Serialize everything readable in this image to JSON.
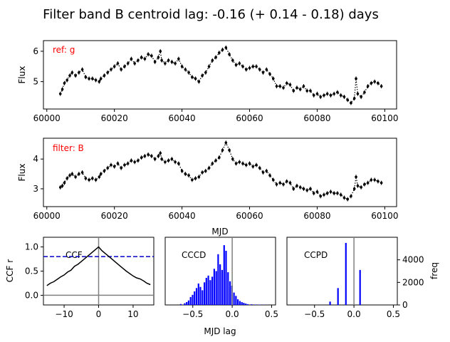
{
  "figure": {
    "title": "Filter band B centroid lag: -0.16 (+ 0.14 - 0.18) days"
  },
  "chart_data": [
    {
      "type": "scatter",
      "panel": "reference light curve",
      "annotation": "ref: g",
      "annotation_color": "#ff0000",
      "xlabel": "",
      "ylabel": "Flux",
      "xlim": [
        59999,
        60103.5
      ],
      "ylim": [
        4.1,
        6.35
      ],
      "xticks": [
        60000,
        60020,
        60040,
        60060,
        60080,
        60100
      ],
      "xtick_labels": [
        "60000",
        "60020",
        "60040",
        "60060",
        "60080",
        "60100"
      ],
      "yticks": [
        5,
        6
      ],
      "ytick_labels": [
        "5",
        "6"
      ],
      "marker_color": "#000000",
      "model_line_style": "dotted",
      "x": [
        60004,
        60004.6,
        60005.2,
        60006,
        60006.8,
        60007.5,
        60008.5,
        60009.5,
        60010.5,
        60011.5,
        60012.5,
        60013.5,
        60014.5,
        60015.5,
        60016,
        60017,
        60018,
        60019,
        60020,
        60021,
        60022,
        60023,
        60024,
        60025,
        60026,
        60027,
        60028,
        60029,
        60030,
        60031,
        60032,
        60033,
        60033.6,
        60034,
        60035,
        60036,
        60037,
        60038,
        60039,
        60040,
        60041,
        60042,
        60043,
        60044,
        60045,
        60046,
        60047,
        60048,
        60049,
        60050,
        60051,
        60052,
        60053,
        60054,
        60055,
        60056,
        60057,
        60058,
        60059,
        60060,
        60061,
        60062,
        60063,
        60064,
        60065,
        60066,
        60067,
        60068,
        60069,
        60070,
        60071,
        60072,
        60073,
        60074,
        60075,
        60076,
        60077,
        60078,
        60079,
        60080,
        60081,
        60082,
        60083,
        60084,
        60085,
        60086,
        60087,
        60088,
        60089,
        60090,
        60091,
        60091.5,
        60092,
        60093,
        60094,
        60095,
        60096,
        60097,
        60098,
        60099
      ],
      "y": [
        4.6,
        4.75,
        4.95,
        5.05,
        5.2,
        5.3,
        5.2,
        5.3,
        5.4,
        5.15,
        5.1,
        5.1,
        5.05,
        5.0,
        5.1,
        5.2,
        5.3,
        5.4,
        5.5,
        5.6,
        5.4,
        5.5,
        5.6,
        5.75,
        5.6,
        5.7,
        5.8,
        5.75,
        5.9,
        5.85,
        5.65,
        5.8,
        6.0,
        5.7,
        5.6,
        5.7,
        5.65,
        5.6,
        5.75,
        5.5,
        5.4,
        5.3,
        5.15,
        5.1,
        5.0,
        5.2,
        5.3,
        5.5,
        5.7,
        5.8,
        5.95,
        6.05,
        6.12,
        5.9,
        5.7,
        5.55,
        5.6,
        5.5,
        5.4,
        5.45,
        5.5,
        5.5,
        5.4,
        5.3,
        5.4,
        5.25,
        5.1,
        4.85,
        4.85,
        4.8,
        4.95,
        4.9,
        4.7,
        4.8,
        4.75,
        4.85,
        4.7,
        4.7,
        4.55,
        4.6,
        4.5,
        4.55,
        4.6,
        4.55,
        4.6,
        4.65,
        4.55,
        4.5,
        4.4,
        4.3,
        4.45,
        5.1,
        4.6,
        4.5,
        4.65,
        4.85,
        4.95,
        5.0,
        4.95,
        4.85
      ]
    },
    {
      "type": "scatter",
      "panel": "filter light curve",
      "annotation": "filter: B",
      "annotation_color": "#ff0000",
      "xlabel": "MJD",
      "ylabel": "Flux",
      "xlim": [
        59999,
        60103.5
      ],
      "ylim": [
        2.4,
        4.7
      ],
      "xticks": [
        60000,
        60020,
        60040,
        60060,
        60080,
        60100
      ],
      "xtick_labels": [
        "60000",
        "60020",
        "60040",
        "60060",
        "60080",
        "60100"
      ],
      "yticks": [
        3,
        4
      ],
      "ytick_labels": [
        "3",
        "4"
      ],
      "marker_color": "#000000",
      "model_line_style": "dotted",
      "x": [
        60004,
        60004.6,
        60005.2,
        60006,
        60006.8,
        60007.5,
        60008.5,
        60009.5,
        60010.5,
        60011.5,
        60012.5,
        60013.5,
        60014.5,
        60015.5,
        60016,
        60017,
        60018,
        60019,
        60020,
        60021,
        60022,
        60023,
        60024,
        60025,
        60026,
        60027,
        60028,
        60029,
        60030,
        60031,
        60032,
        60033,
        60033.6,
        60034,
        60035,
        60036,
        60037,
        60038,
        60039,
        60040,
        60041,
        60042,
        60043,
        60044,
        60045,
        60046,
        60047,
        60048,
        60049,
        60050,
        60051,
        60052,
        60053,
        60054,
        60055,
        60056,
        60057,
        60058,
        60059,
        60060,
        60061,
        60062,
        60063,
        60064,
        60065,
        60066,
        60067,
        60068,
        60069,
        60070,
        60071,
        60072,
        60073,
        60074,
        60075,
        60076,
        60077,
        60078,
        60079,
        60080,
        60081,
        60082,
        60083,
        60084,
        60085,
        60086,
        60087,
        60088,
        60089,
        60090,
        60091,
        60091.5,
        60092,
        60093,
        60094,
        60095,
        60096,
        60097,
        60098,
        60099
      ],
      "y": [
        3.05,
        3.1,
        3.2,
        3.35,
        3.45,
        3.5,
        3.4,
        3.5,
        3.55,
        3.35,
        3.3,
        3.35,
        3.3,
        3.4,
        3.5,
        3.6,
        3.7,
        3.8,
        3.75,
        3.85,
        3.7,
        3.8,
        3.85,
        3.95,
        3.9,
        3.95,
        4.05,
        4.1,
        4.15,
        4.1,
        4.0,
        4.1,
        4.2,
        4.0,
        3.9,
        3.95,
        4.0,
        3.9,
        3.85,
        3.6,
        3.5,
        3.45,
        3.3,
        3.35,
        3.4,
        3.55,
        3.6,
        3.7,
        3.85,
        3.95,
        4.05,
        4.3,
        4.55,
        4.3,
        4.0,
        3.85,
        3.9,
        3.85,
        3.8,
        3.85,
        3.75,
        3.8,
        3.7,
        3.55,
        3.6,
        3.45,
        3.3,
        3.15,
        3.2,
        3.15,
        3.25,
        3.2,
        3.0,
        3.1,
        3.05,
        3.0,
        2.95,
        3.0,
        2.85,
        2.9,
        2.75,
        2.8,
        2.85,
        2.9,
        2.85,
        2.85,
        2.8,
        2.7,
        2.65,
        2.75,
        3.0,
        3.4,
        3.1,
        3.05,
        3.15,
        3.2,
        3.3,
        3.3,
        3.25,
        3.2
      ]
    },
    {
      "type": "line",
      "panel": "CCF",
      "annotation": "CCF",
      "xlabel": "",
      "ylabel": "CCF r",
      "xlim": [
        -16,
        16
      ],
      "ylim": [
        -0.2,
        1.2
      ],
      "xticks": [
        -10,
        0,
        10
      ],
      "xtick_labels": [
        "−10",
        "0",
        "10"
      ],
      "yticks": [
        0.0,
        0.5,
        1.0
      ],
      "ytick_labels": [
        "0.0",
        "0.5",
        "1.0"
      ],
      "line_color": "#000000",
      "threshold_r": 0.8,
      "threshold_color": "#0000cc",
      "reference_lines": {
        "x": 0,
        "y": 0,
        "color": "#808080"
      },
      "x": [
        -15,
        -14,
        -13,
        -12,
        -11,
        -10,
        -9,
        -8,
        -7,
        -6,
        -5,
        -4,
        -3,
        -2,
        -1,
        0,
        1,
        2,
        3,
        4,
        5,
        6,
        7,
        8,
        9,
        10,
        11,
        12,
        13,
        14,
        15
      ],
      "y": [
        0.2,
        0.25,
        0.28,
        0.33,
        0.38,
        0.42,
        0.48,
        0.52,
        0.6,
        0.64,
        0.7,
        0.76,
        0.82,
        0.88,
        0.94,
        1.0,
        0.92,
        0.86,
        0.8,
        0.74,
        0.68,
        0.62,
        0.56,
        0.5,
        0.45,
        0.4,
        0.36,
        0.34,
        0.3,
        0.25,
        0.22
      ]
    },
    {
      "type": "bar",
      "panel": "CCCD",
      "annotation": "CCCD",
      "xlabel": "MJD lag",
      "ylabel": "",
      "xlim": [
        -0.85,
        0.55
      ],
      "ymax": 6000,
      "xticks": [
        -0.5,
        0.0,
        0.5
      ],
      "xtick_labels": [
        "−0.5",
        "0.0",
        "0.5"
      ],
      "bar_color": "#0000ff",
      "bin_width": 0.025,
      "reference_line": {
        "x": 0,
        "color": "#808080"
      },
      "x": [
        -0.65,
        -0.6,
        -0.575,
        -0.55,
        -0.525,
        -0.5,
        -0.475,
        -0.45,
        -0.425,
        -0.4,
        -0.375,
        -0.35,
        -0.325,
        -0.3,
        -0.275,
        -0.25,
        -0.225,
        -0.2,
        -0.175,
        -0.15,
        -0.125,
        -0.1,
        -0.075,
        -0.05,
        -0.025,
        0.0,
        0.025,
        0.05,
        0.075,
        0.1,
        0.125,
        0.15,
        0.175,
        0.2,
        0.25,
        0.3,
        0.35,
        0.4,
        0.45
      ],
      "values": [
        80,
        150,
        250,
        400,
        700,
        900,
        1200,
        1500,
        1900,
        1600,
        1300,
        2000,
        2400,
        2600,
        2200,
        2500,
        3200,
        3000,
        4500,
        3600,
        3100,
        5300,
        4800,
        2900,
        2100,
        1700,
        1100,
        800,
        500,
        350,
        250,
        180,
        120,
        70,
        60,
        40,
        30,
        20,
        15
      ]
    },
    {
      "type": "bar",
      "panel": "CCPD",
      "annotation": "CCPD",
      "xlabel": "",
      "ylabel": "freq",
      "xlim": [
        -0.85,
        0.55
      ],
      "ylim": [
        0,
        6000
      ],
      "yticks": [
        0,
        2000,
        4000
      ],
      "ytick_labels": [
        "0",
        "2000",
        "4000"
      ],
      "xticks": [
        -0.5,
        0.0,
        0.5
      ],
      "xtick_labels": [
        "−0.5",
        "0.0",
        "0.5"
      ],
      "bar_color": "#0000ff",
      "bin_width": 0.025,
      "reference_line": {
        "x": 0,
        "color": "#808080"
      },
      "x": [
        -0.3,
        -0.2,
        -0.1,
        0.08
      ],
      "values": [
        300,
        1500,
        5500,
        3100
      ]
    }
  ]
}
